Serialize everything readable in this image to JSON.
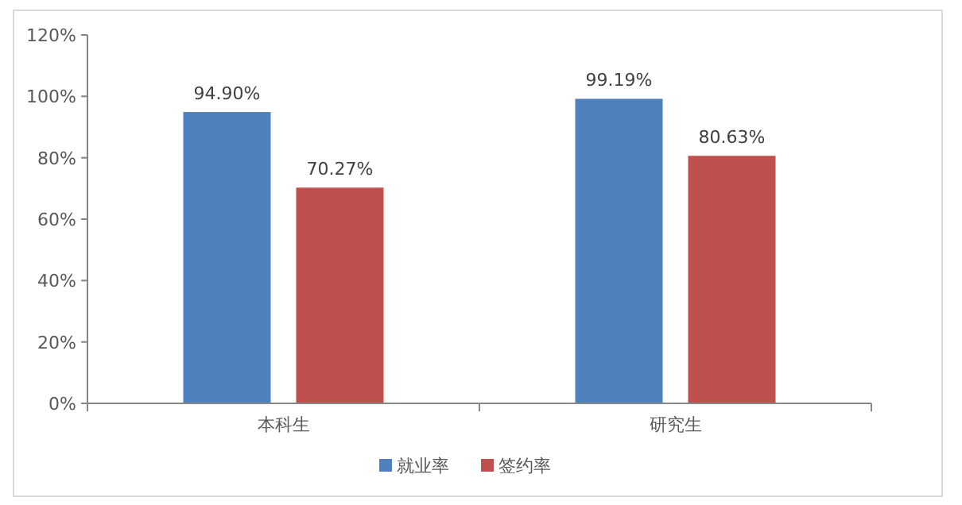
{
  "chart_data": {
    "type": "bar",
    "categories": [
      "本科生",
      "研究生"
    ],
    "series": [
      {
        "name": "就业率",
        "color": "#4f81bd",
        "values": [
          94.9,
          99.19
        ],
        "value_labels": [
          "94.90%",
          "99.19%"
        ]
      },
      {
        "name": "签约率",
        "color": "#c0504d",
        "values": [
          70.27,
          80.63
        ],
        "value_labels": [
          "70.27%",
          "80.63%"
        ]
      }
    ],
    "ylim": [
      0,
      120
    ],
    "yticks": [
      {
        "value": 0,
        "label": "0%"
      },
      {
        "value": 20,
        "label": "20%"
      },
      {
        "value": 40,
        "label": "40%"
      },
      {
        "value": 60,
        "label": "60%"
      },
      {
        "value": 80,
        "label": "80%"
      },
      {
        "value": 100,
        "label": "100%"
      },
      {
        "value": 120,
        "label": "120%"
      }
    ],
    "grid": false,
    "legend": "bottom"
  }
}
